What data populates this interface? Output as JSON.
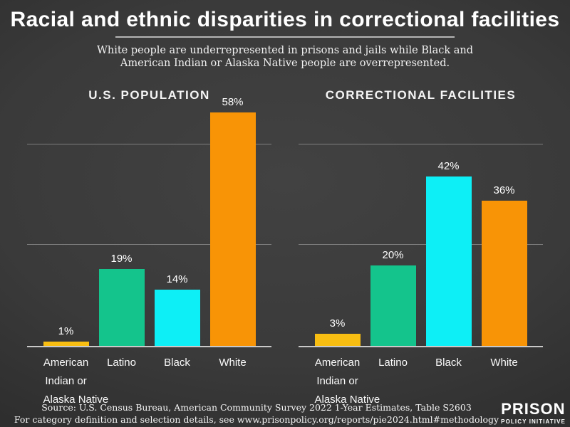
{
  "header": {
    "title": "Racial and ethnic disparities in correctional facilities",
    "subtitle_line1": "White people are underrepresented in prisons and jails while Black and",
    "subtitle_line2": "American Indian or Alaska Native people are overrepresented."
  },
  "chart_data": [
    {
      "type": "bar",
      "title": "U.S. POPULATION",
      "categories": [
        "American Indian or Alaska Native",
        "Latino",
        "Black",
        "White"
      ],
      "category_lines": [
        [
          "American",
          "Indian or",
          "Alaska Native"
        ],
        [
          "Latino"
        ],
        [
          "Black"
        ],
        [
          "White"
        ]
      ],
      "values": [
        1,
        19,
        14,
        58
      ],
      "value_labels": [
        "1%",
        "19%",
        "14%",
        "58%"
      ],
      "bar_colors": [
        "#F8BE12",
        "#14C48C",
        "#0DEFF6",
        "#F89406"
      ],
      "xlabel": "",
      "ylabel": "",
      "ylim": [
        0,
        60
      ],
      "gridlines_at_pct": [
        25,
        50
      ],
      "grid": "horizontal",
      "legend": "none"
    },
    {
      "type": "bar",
      "title": "CORRECTIONAL FACILITIES",
      "categories": [
        "American Indian or Alaska Native",
        "Latino",
        "Black",
        "White"
      ],
      "category_lines": [
        [
          "American",
          "Indian or",
          "Alaska Native"
        ],
        [
          "Latino"
        ],
        [
          "Black"
        ],
        [
          "White"
        ]
      ],
      "values": [
        3,
        20,
        42,
        36
      ],
      "value_labels": [
        "3%",
        "20%",
        "42%",
        "36%"
      ],
      "bar_colors": [
        "#F8BE12",
        "#14C48C",
        "#0DEFF6",
        "#F89406"
      ],
      "xlabel": "",
      "ylabel": "",
      "ylim": [
        0,
        60
      ],
      "gridlines_at_pct": [
        25,
        50
      ],
      "grid": "horizontal",
      "legend": "none"
    }
  ],
  "footer": {
    "source_line1": "Source: U.S. Census Bureau, American Community Survey 2022 1-Year Estimates, Table S2603",
    "source_line2": "For category definition and selection details, see www.prisonpolicy.org/reports/pie2024.html#methodology",
    "logo_line1": "PRISON",
    "logo_line2": "POLICY INITIATIVE"
  },
  "colors": {
    "background_center": "#424242",
    "background_edge": "#262626",
    "american_indian_bar": "#F8BE12",
    "latino_bar": "#14C48C",
    "black_bar": "#0DEFF6",
    "white_bar": "#F89406",
    "axis_line": "#c9c9c9",
    "gridline": "rgba(205,205,205,0.45)",
    "text": "#ffffff"
  }
}
